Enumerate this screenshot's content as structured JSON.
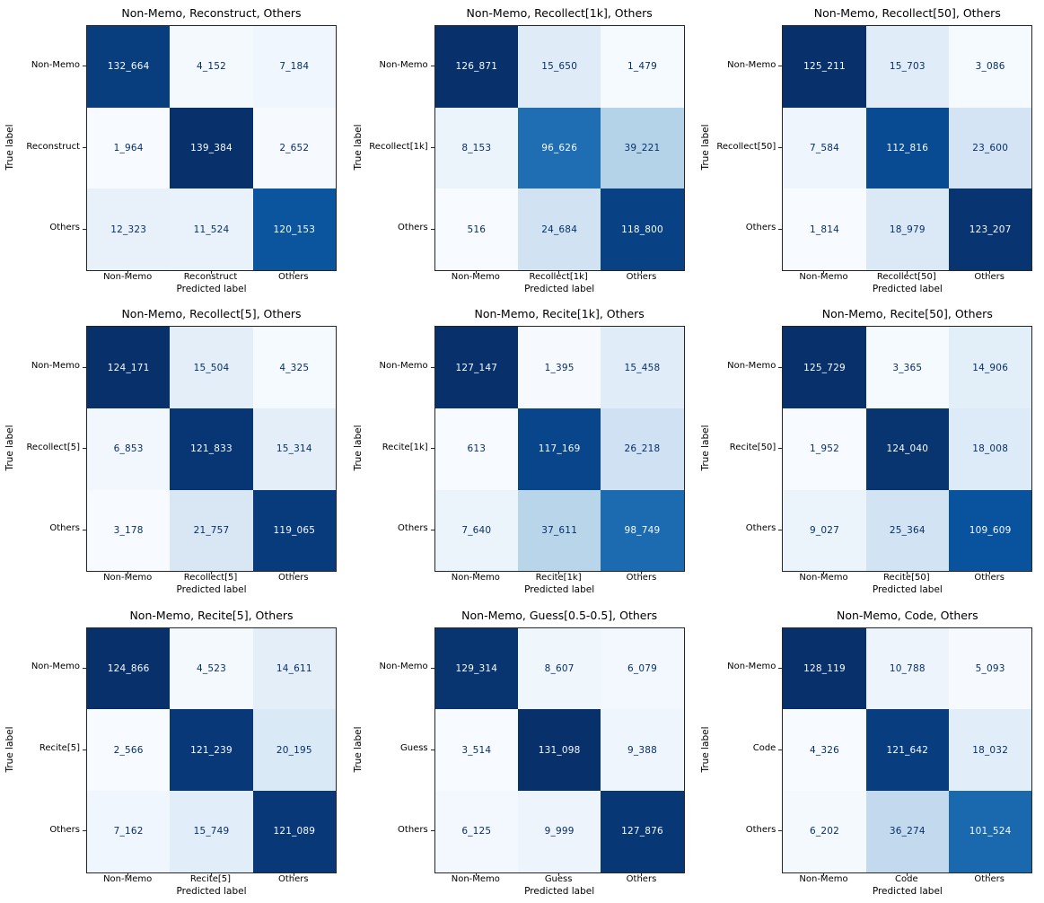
{
  "figure": {
    "background": "#ffffff",
    "axis_color": "#262626",
    "colormap_name": "Blues",
    "colormap_anchors": [
      "#f7fbff",
      "#deebf7",
      "#c6dbef",
      "#9ecae1",
      "#6baed6",
      "#4292c6",
      "#2171b5",
      "#08519c",
      "#08306b"
    ],
    "cell_text_light": "#f7fbff",
    "cell_text_dark": "#08306b"
  },
  "chart_data": [
    {
      "type": "heatmap",
      "title": "Non-Memo, Reconstruct, Others",
      "xlabel": "Predicted label",
      "ylabel": "True label",
      "categories": [
        "Non-Memo",
        "Reconstruct",
        "Others"
      ],
      "values": [
        [
          132664,
          4152,
          7184
        ],
        [
          1964,
          139384,
          2652
        ],
        [
          12323,
          11524,
          120153
        ]
      ],
      "cell_labels": [
        [
          "132_664",
          "4_152",
          "7_184"
        ],
        [
          "1_964",
          "139_384",
          "2_652"
        ],
        [
          "12_323",
          "11_524",
          "120_153"
        ]
      ]
    },
    {
      "type": "heatmap",
      "title": "Non-Memo, Recollect[1k], Others",
      "xlabel": "Predicted label",
      "ylabel": "True label",
      "categories": [
        "Non-Memo",
        "Recollect[1k]",
        "Others"
      ],
      "values": [
        [
          126871,
          15650,
          1479
        ],
        [
          8153,
          96626,
          39221
        ],
        [
          516,
          24684,
          118800
        ]
      ],
      "cell_labels": [
        [
          "126_871",
          "15_650",
          "1_479"
        ],
        [
          "8_153",
          "96_626",
          "39_221"
        ],
        [
          "516",
          "24_684",
          "118_800"
        ]
      ]
    },
    {
      "type": "heatmap",
      "title": "Non-Memo, Recollect[50], Others",
      "xlabel": "Predicted label",
      "ylabel": "True label",
      "categories": [
        "Non-Memo",
        "Recollect[50]",
        "Others"
      ],
      "values": [
        [
          125211,
          15703,
          3086
        ],
        [
          7584,
          112816,
          23600
        ],
        [
          1814,
          18979,
          123207
        ]
      ],
      "cell_labels": [
        [
          "125_211",
          "15_703",
          "3_086"
        ],
        [
          "7_584",
          "112_816",
          "23_600"
        ],
        [
          "1_814",
          "18_979",
          "123_207"
        ]
      ]
    },
    {
      "type": "heatmap",
      "title": "Non-Memo, Recollect[5], Others",
      "xlabel": "Predicted label",
      "ylabel": "True label",
      "categories": [
        "Non-Memo",
        "Recollect[5]",
        "Others"
      ],
      "values": [
        [
          124171,
          15504,
          4325
        ],
        [
          6853,
          121833,
          15314
        ],
        [
          3178,
          21757,
          119065
        ]
      ],
      "cell_labels": [
        [
          "124_171",
          "15_504",
          "4_325"
        ],
        [
          "6_853",
          "121_833",
          "15_314"
        ],
        [
          "3_178",
          "21_757",
          "119_065"
        ]
      ]
    },
    {
      "type": "heatmap",
      "title": "Non-Memo, Recite[1k], Others",
      "xlabel": "Predicted label",
      "ylabel": "True label",
      "categories": [
        "Non-Memo",
        "Recite[1k]",
        "Others"
      ],
      "values": [
        [
          127147,
          1395,
          15458
        ],
        [
          613,
          117169,
          26218
        ],
        [
          7640,
          37611,
          98749
        ]
      ],
      "cell_labels": [
        [
          "127_147",
          "1_395",
          "15_458"
        ],
        [
          "613",
          "117_169",
          "26_218"
        ],
        [
          "7_640",
          "37_611",
          "98_749"
        ]
      ]
    },
    {
      "type": "heatmap",
      "title": "Non-Memo, Recite[50], Others",
      "xlabel": "Predicted label",
      "ylabel": "True label",
      "categories": [
        "Non-Memo",
        "Recite[50]",
        "Others"
      ],
      "values": [
        [
          125729,
          3365,
          14906
        ],
        [
          1952,
          124040,
          18008
        ],
        [
          9027,
          25364,
          109609
        ]
      ],
      "cell_labels": [
        [
          "125_729",
          "3_365",
          "14_906"
        ],
        [
          "1_952",
          "124_040",
          "18_008"
        ],
        [
          "9_027",
          "25_364",
          "109_609"
        ]
      ]
    },
    {
      "type": "heatmap",
      "title": "Non-Memo, Recite[5], Others",
      "xlabel": "Predicted label",
      "ylabel": "True label",
      "categories": [
        "Non-Memo",
        "Recite[5]",
        "Others"
      ],
      "values": [
        [
          124866,
          4523,
          14611
        ],
        [
          2566,
          121239,
          20195
        ],
        [
          7162,
          15749,
          121089
        ]
      ],
      "cell_labels": [
        [
          "124_866",
          "4_523",
          "14_611"
        ],
        [
          "2_566",
          "121_239",
          "20_195"
        ],
        [
          "7_162",
          "15_749",
          "121_089"
        ]
      ]
    },
    {
      "type": "heatmap",
      "title": "Non-Memo, Guess[0.5-0.5], Others",
      "xlabel": "Predicted label",
      "ylabel": "True label",
      "categories": [
        "Non-Memo",
        "Guess",
        "Others"
      ],
      "values": [
        [
          129314,
          8607,
          6079
        ],
        [
          3514,
          131098,
          9388
        ],
        [
          6125,
          9999,
          127876
        ]
      ],
      "cell_labels": [
        [
          "129_314",
          "8_607",
          "6_079"
        ],
        [
          "3_514",
          "131_098",
          "9_388"
        ],
        [
          "6_125",
          "9_999",
          "127_876"
        ]
      ]
    },
    {
      "type": "heatmap",
      "title": "Non-Memo, Code, Others",
      "xlabel": "Predicted label",
      "ylabel": "True label",
      "categories": [
        "Non-Memo",
        "Code",
        "Others"
      ],
      "values": [
        [
          128119,
          10788,
          5093
        ],
        [
          4326,
          121642,
          18032
        ],
        [
          6202,
          36274,
          101524
        ]
      ],
      "cell_labels": [
        [
          "128_119",
          "10_788",
          "5_093"
        ],
        [
          "4_326",
          "121_642",
          "18_032"
        ],
        [
          "6_202",
          "36_274",
          "101_524"
        ]
      ]
    }
  ]
}
